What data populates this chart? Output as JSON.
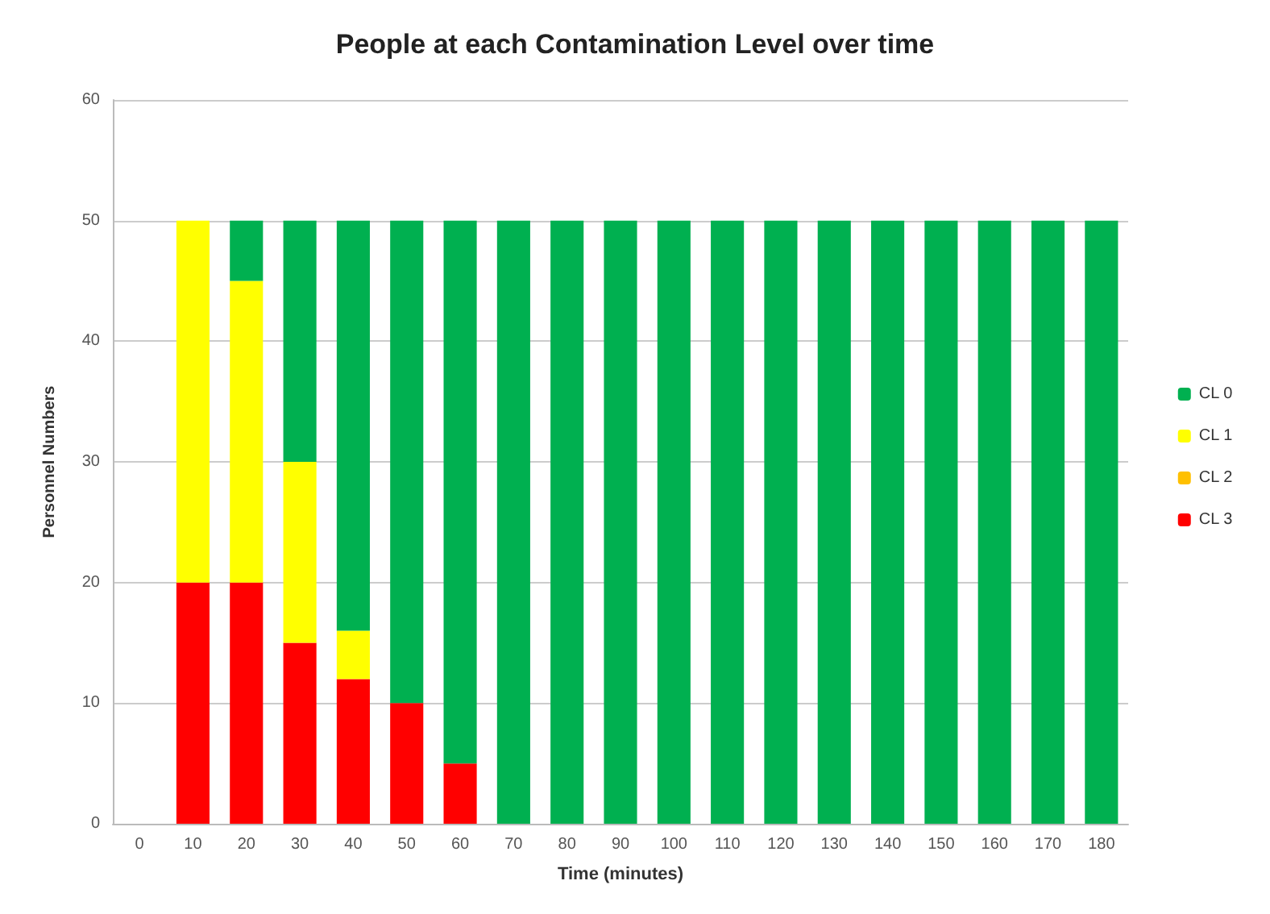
{
  "chart_data": {
    "type": "bar",
    "title": "People at each Contamination Level over time",
    "xlabel": "Time (minutes)",
    "ylabel": "Personnel Numbers",
    "categories": [
      "0",
      "10",
      "20",
      "30",
      "40",
      "50",
      "60",
      "70",
      "80",
      "90",
      "100",
      "110",
      "120",
      "130",
      "140",
      "150",
      "160",
      "170",
      "180"
    ],
    "stacked": true,
    "series": [
      {
        "name": "CL 3",
        "color": "#ff0000",
        "values": [
          0,
          20,
          20,
          15,
          12,
          10,
          5,
          0,
          0,
          0,
          0,
          0,
          0,
          0,
          0,
          0,
          0,
          0,
          0
        ]
      },
      {
        "name": "CL 2",
        "color": "#ffc000",
        "values": [
          0,
          0,
          0,
          0,
          0,
          0,
          0,
          0,
          0,
          0,
          0,
          0,
          0,
          0,
          0,
          0,
          0,
          0,
          0
        ]
      },
      {
        "name": "CL 1",
        "color": "#ffff00",
        "values": [
          0,
          30,
          25,
          15,
          4,
          0,
          0,
          0,
          0,
          0,
          0,
          0,
          0,
          0,
          0,
          0,
          0,
          0,
          0
        ]
      },
      {
        "name": "CL 0",
        "color": "#00b050",
        "values": [
          0,
          0,
          5,
          20,
          34,
          40,
          45,
          50,
          50,
          50,
          50,
          50,
          50,
          50,
          50,
          50,
          50,
          50,
          50
        ]
      }
    ],
    "ylim": [
      0,
      60
    ],
    "yticks": [
      0,
      10,
      20,
      30,
      40,
      50,
      60
    ],
    "grid": "y",
    "legend": "right"
  }
}
